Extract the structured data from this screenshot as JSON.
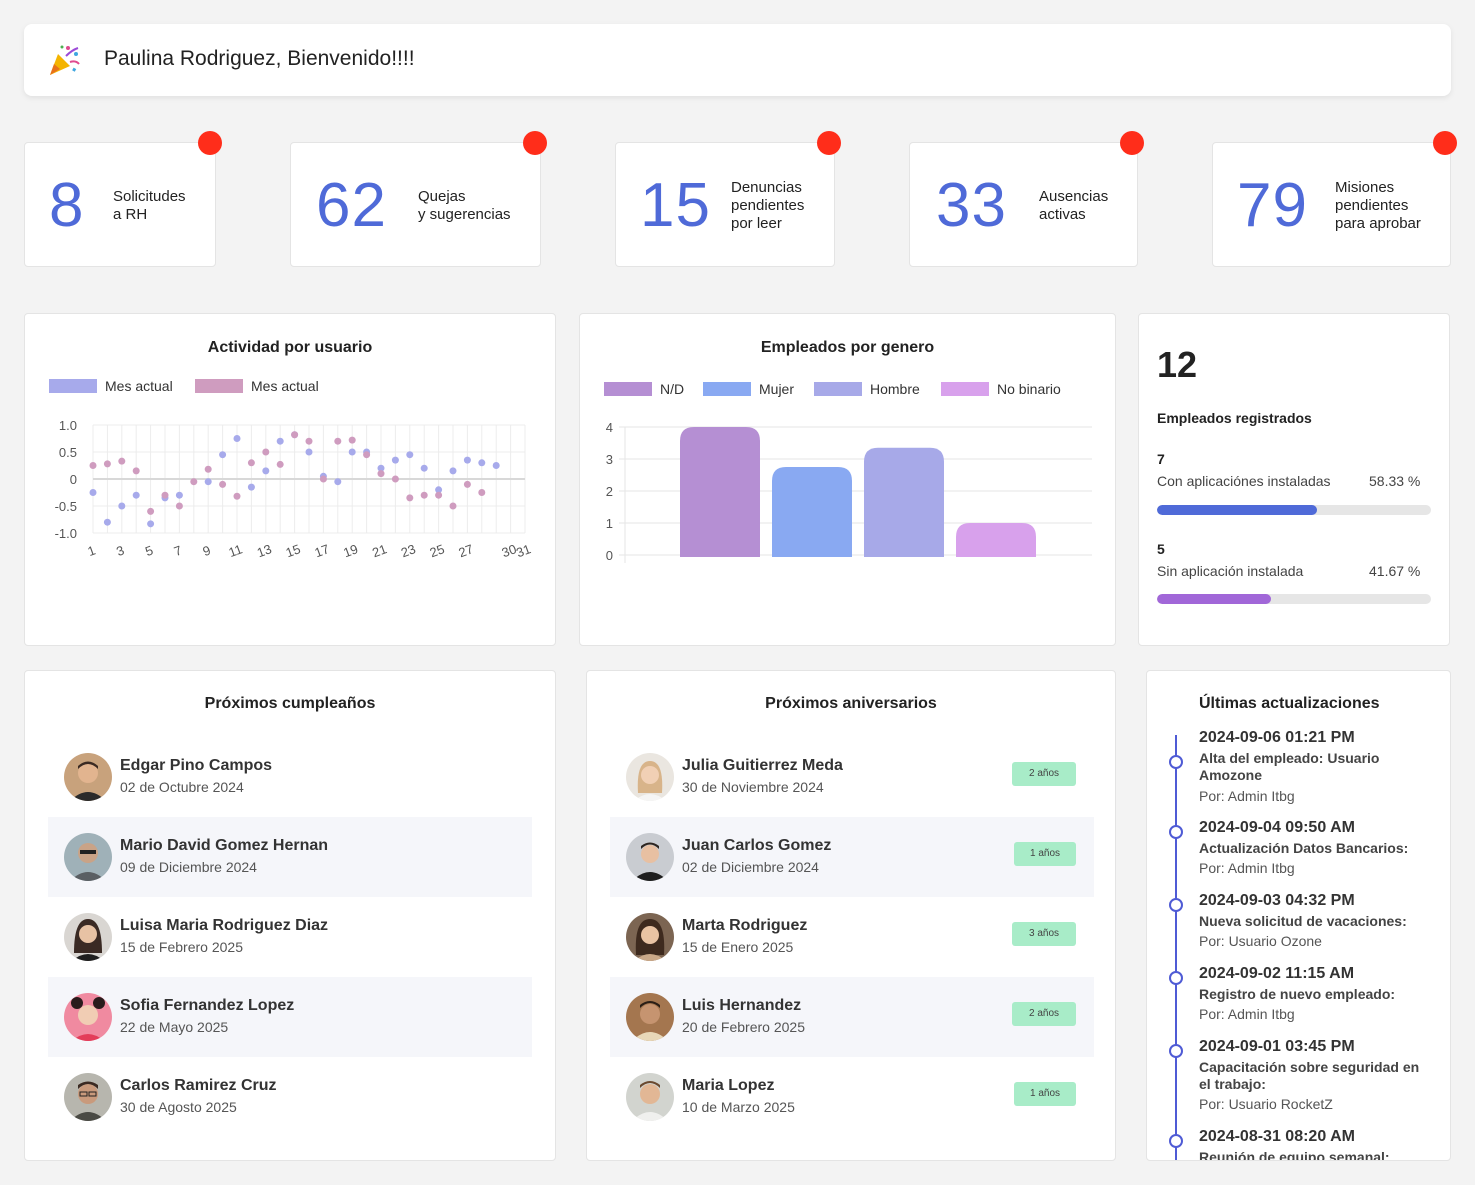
{
  "welcome": {
    "title": "Paulina Rodriguez, Bienvenido!!!!"
  },
  "stats": [
    {
      "value": "8",
      "line1": "Solicitudes",
      "line2": "a RH",
      "line3": ""
    },
    {
      "value": "62",
      "line1": "Quejas",
      "line2": "y sugerencias",
      "line3": ""
    },
    {
      "value": "15",
      "line1": "Denuncias",
      "line2": "pendientes",
      "line3": "por leer"
    },
    {
      "value": "33",
      "line1": "Ausencias",
      "line2": "activas",
      "line3": ""
    },
    {
      "value": "79",
      "line1": "Misiones",
      "line2": "pendientes",
      "line3": "para aprobar"
    }
  ],
  "activity": {
    "title": "Actividad por usuario",
    "legend": [
      "Mes actual",
      "Mes actual"
    ],
    "colors": [
      "#a7aaeb",
      "#cf9cbf"
    ],
    "chart_data": {
      "type": "scatter",
      "x": [
        1,
        2,
        3,
        4,
        5,
        6,
        7,
        8,
        9,
        10,
        11,
        12,
        13,
        14,
        15,
        16,
        17,
        18,
        19,
        20,
        21,
        22,
        23,
        24,
        25,
        26,
        27,
        28,
        29,
        30,
        31
      ],
      "x_ticks": [
        "1",
        "3",
        "5",
        "7",
        "9",
        "11",
        "13",
        "15",
        "17",
        "19",
        "21",
        "23",
        "25",
        "27",
        "30",
        "31"
      ],
      "y_ticks": [
        "1.0",
        "0.5",
        "0",
        "-0.5",
        "-1.0"
      ],
      "ylim": [
        -1.0,
        1.0
      ],
      "series": [
        {
          "name": "Mes actual",
          "values": [
            -0.25,
            -0.8,
            -0.5,
            -0.3,
            -0.83,
            -0.35,
            -0.3,
            null,
            -0.05,
            0.45,
            0.75,
            -0.15,
            0.15,
            0.7,
            0.82,
            0.5,
            0.05,
            -0.05,
            0.5,
            0.5,
            0.2,
            0.35,
            0.45,
            0.2,
            -0.2,
            0.15,
            0.35,
            0.3,
            0.25,
            null,
            null
          ]
        },
        {
          "name": "Mes actual",
          "values": [
            0.25,
            0.28,
            0.33,
            0.15,
            -0.6,
            -0.3,
            -0.5,
            -0.05,
            0.18,
            -0.1,
            -0.32,
            0.3,
            0.5,
            0.27,
            0.82,
            0.7,
            0.0,
            0.7,
            0.72,
            0.45,
            0.1,
            0.0,
            -0.35,
            -0.3,
            -0.3,
            -0.5,
            -0.1,
            -0.25,
            null,
            null,
            null
          ]
        }
      ]
    }
  },
  "gender": {
    "title": "Empleados por genero",
    "legend": [
      "N/D",
      "Mujer",
      "Hombre",
      "No binario"
    ],
    "colors": [
      "#b58fd3",
      "#89a9f2",
      "#a7a9e8",
      "#d8a1ec"
    ],
    "chart_data": {
      "type": "bar",
      "categories": [
        "N/D",
        "Mujer",
        "Hombre",
        "No binario"
      ],
      "values": [
        4,
        2.75,
        3.35,
        1
      ],
      "y_ticks": [
        "4",
        "3",
        "2",
        "1",
        "0"
      ],
      "ylim": [
        0,
        4
      ]
    }
  },
  "registered": {
    "total": "12",
    "label": "Empleados registrados",
    "with_app": {
      "count": "7",
      "label": "Con aplicaciónes instaladas",
      "percent": "58.33 %",
      "fraction": 0.5833,
      "color": "#4f6ad8"
    },
    "without_app": {
      "count": "5",
      "label": "Sin aplicación instalada",
      "percent": "41.67 %",
      "fraction": 0.4167,
      "color": "#a167d8"
    }
  },
  "birthdays": {
    "title": "Próximos cumpleaños",
    "items": [
      {
        "name": "Edgar Pino Campos",
        "date": "02 de Octubre 2024"
      },
      {
        "name": "Mario David Gomez Hernan",
        "date": "09 de Diciembre 2024"
      },
      {
        "name": "Luisa Maria Rodriguez Diaz",
        "date": "15 de Febrero 2025"
      },
      {
        "name": "Sofia Fernandez Lopez",
        "date": "22 de Mayo 2025"
      },
      {
        "name": "Carlos Ramirez Cruz",
        "date": "30 de Agosto 2025"
      }
    ]
  },
  "anniversaries": {
    "title": "Próximos aniversarios",
    "items": [
      {
        "name": "Julia Guitierrez Meda",
        "date": "30 de Noviembre 2024",
        "badge": "2 años"
      },
      {
        "name": "Juan Carlos Gomez",
        "date": "02 de Diciembre 2024",
        "badge": "1 años"
      },
      {
        "name": "Marta Rodriguez",
        "date": "15 de Enero 2025",
        "badge": "3 años"
      },
      {
        "name": "Luis Hernandez",
        "date": "20 de Febrero 2025",
        "badge": "2 años"
      },
      {
        "name": "Maria Lopez",
        "date": "10 de Marzo 2025",
        "badge": "1 años"
      }
    ]
  },
  "updates": {
    "title": "Últimas actualizaciones",
    "items": [
      {
        "date": "2024-09-06 01:21 PM",
        "desc": "Alta del empleado: Usuario Amozone",
        "by": "Por: Admin Itbg"
      },
      {
        "date": "2024-09-04 09:50 AM",
        "desc": "Actualización Datos Bancarios:",
        "by": "Por: Admin Itbg"
      },
      {
        "date": "2024-09-03 04:32 PM",
        "desc": "Nueva solicitud de vacaciones:",
        "by": "Por: Usuario Ozone"
      },
      {
        "date": "2024-09-02 11:15 AM",
        "desc": "Registro de nuevo empleado:",
        "by": "Por: Admin Itbg"
      },
      {
        "date": "2024-09-01 03:45 PM",
        "desc": "Capacitación sobre seguridad en el trabajo:",
        "by": "Por: Usuario RocketZ"
      },
      {
        "date": "2024-08-31 08:20 AM",
        "desc": "Reunión de equipo semanal:",
        "by": ""
      }
    ]
  }
}
